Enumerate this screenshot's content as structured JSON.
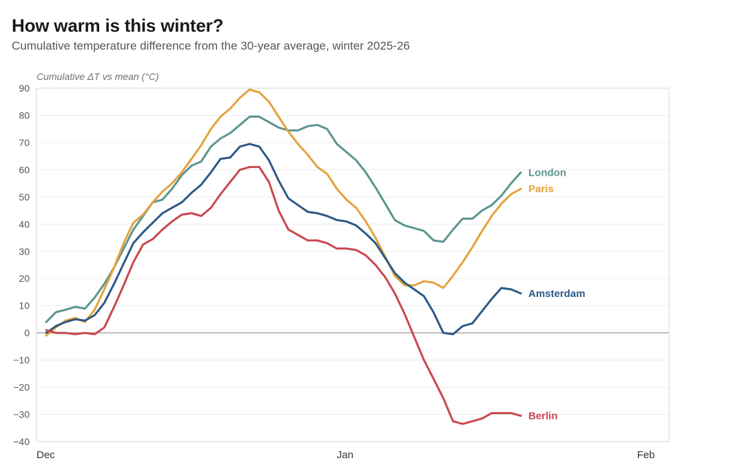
{
  "header": {
    "title": "How warm is this winter?",
    "subtitle": "Cumulative temperature difference from the 30-year average, winter 2025-26"
  },
  "chart_data": {
    "type": "line",
    "title": "How warm is this winter?",
    "subtitle": "Cumulative temperature difference from the 30-year average, winter 2025-26",
    "ylabel": "Cumulative ΔT vs mean (°C)",
    "xlabel": "",
    "ylim": [
      -40,
      90
    ],
    "yticks": [
      90,
      80,
      70,
      60,
      50,
      40,
      30,
      20,
      10,
      0,
      -10,
      -20,
      -30,
      -40
    ],
    "xlim_days": [
      0,
      65
    ],
    "xticks": [
      {
        "label": "Dec",
        "day": 0
      },
      {
        "label": "Jan",
        "day": 31
      },
      {
        "label": "Feb",
        "day": 62
      }
    ],
    "grid": true,
    "legend": "direct-labels-at-line-end",
    "x_days": [
      1,
      2,
      3,
      4,
      5,
      6,
      7,
      8,
      9,
      10,
      11,
      12,
      13,
      14,
      15,
      16,
      17,
      18,
      19,
      20,
      21,
      22,
      23,
      24,
      25,
      26,
      27,
      28,
      29,
      30,
      31,
      32,
      33,
      34,
      35,
      36,
      37,
      38,
      39,
      40,
      41,
      42,
      43,
      44,
      45,
      46,
      47,
      48,
      49,
      50
    ],
    "series": [
      {
        "name": "London",
        "color": "#5a9490",
        "values": [
          4,
          7.6,
          8.5,
          9.6,
          8.9,
          13,
          18,
          24,
          31,
          38,
          43,
          48,
          49,
          53,
          58,
          61.5,
          63,
          68.5,
          71.5,
          73.5,
          76.5,
          79.5,
          79.5,
          77.5,
          75.5,
          74.5,
          74.5,
          76,
          76.5,
          75,
          69.5,
          66.5,
          63.5,
          59,
          53.5,
          47.5,
          41.5,
          39.5,
          38.5,
          37.5,
          34,
          33.5,
          38,
          42,
          42,
          45,
          47,
          50.5,
          55,
          59
        ]
      },
      {
        "name": "Paris",
        "color": "#e3a23b",
        "values": [
          -1,
          2,
          4.5,
          5.5,
          4,
          8.5,
          16,
          24,
          33,
          40.5,
          43.5,
          48,
          52,
          55,
          59,
          64,
          69,
          75,
          79.5,
          82.5,
          86.5,
          89.5,
          88.5,
          85,
          79.5,
          74,
          69.5,
          65.5,
          61,
          58.5,
          53,
          49,
          46,
          41,
          35,
          28,
          21,
          17.5,
          17.5,
          19,
          18.5,
          16.5,
          21,
          26,
          31.5,
          37.5,
          43,
          47.5,
          51,
          53
        ]
      },
      {
        "name": "Amsterdam",
        "color": "#2c5985",
        "values": [
          0,
          2.5,
          4,
          5,
          4.5,
          6.5,
          11,
          18,
          25.5,
          33,
          37,
          40.5,
          44,
          46,
          48,
          51.5,
          54.5,
          59,
          64,
          64.5,
          68.5,
          69.5,
          68.5,
          63.5,
          56,
          49.5,
          47,
          44.5,
          44,
          43,
          41.5,
          41,
          39.5,
          36.5,
          33,
          27.5,
          22,
          18.5,
          16,
          13.5,
          7.5,
          0,
          -0.5,
          2.5,
          3.5,
          8,
          12.5,
          16.5,
          16,
          14.5
        ]
      },
      {
        "name": "Berlin",
        "color": "#c9474f",
        "values": [
          1,
          0,
          0,
          -0.5,
          0,
          -0.5,
          2,
          9.5,
          17.5,
          26,
          32.5,
          34.5,
          38,
          41,
          43.5,
          44,
          43,
          46,
          51,
          55.5,
          60,
          61,
          61,
          55.5,
          45,
          38,
          36,
          34,
          34,
          33,
          31,
          31,
          30.5,
          28.5,
          25,
          20.5,
          14.5,
          7,
          -1.5,
          -10,
          -17,
          -24,
          -32.5,
          -33.5,
          -32.5,
          -31.5,
          -29.5,
          -29.5,
          -29.5,
          -30.5
        ]
      }
    ]
  }
}
